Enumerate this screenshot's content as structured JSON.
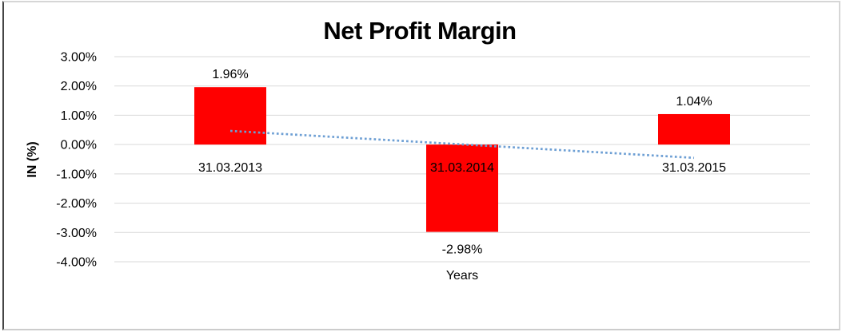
{
  "chart_data": {
    "type": "bar",
    "title": "Net Profit Margin",
    "xlabel": "Years",
    "ylabel": "IN (%)",
    "categories": [
      "31.03.2013",
      "31.03.2014",
      "31.03.2015"
    ],
    "values": [
      1.96,
      -2.98,
      1.04
    ],
    "value_labels": [
      "1.96%",
      "-2.98%",
      "1.04%"
    ],
    "ylim": [
      -4,
      3
    ],
    "ytick_labels": [
      "3.00%",
      "2.00%",
      "1.00%",
      "0.00%",
      "-1.00%",
      "-2.00%",
      "-3.00%",
      "-4.00%"
    ],
    "ytick_values": [
      3,
      2,
      1,
      0,
      -1,
      -2,
      -3,
      -4
    ],
    "grid": true,
    "legend": false,
    "bar_color": "#ff0000",
    "gridline_color": "#d9d9d9",
    "text_color": "#000000",
    "trendline": {
      "type": "linear",
      "style": "dotted",
      "color": "#6d9fd4"
    }
  }
}
